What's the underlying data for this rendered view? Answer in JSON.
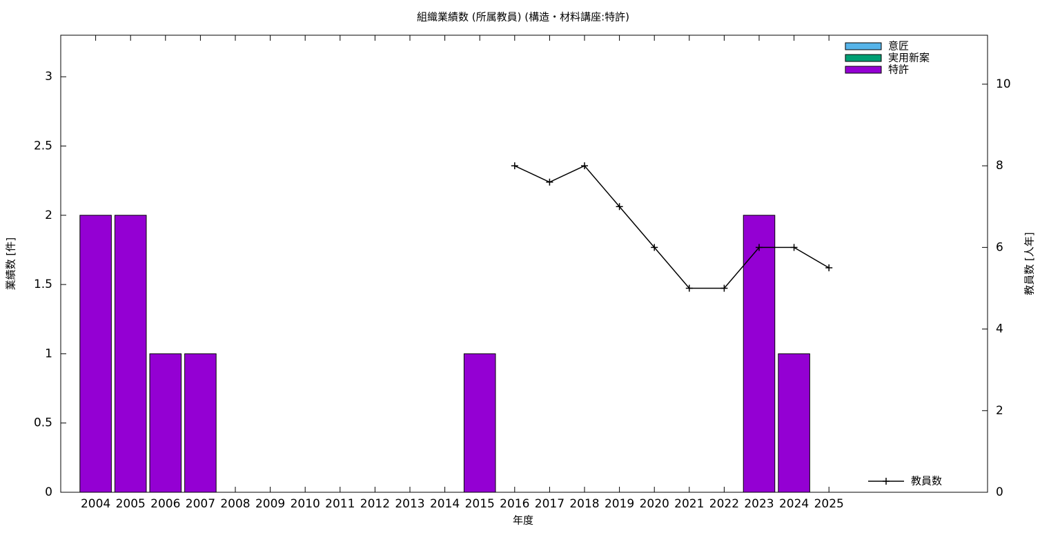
{
  "chart_data": {
    "type": "bar",
    "stacked": true,
    "title": "組織業績数 (所属教員) (構造・材料講座:特許)",
    "x_label": "年度",
    "y_label": "業績数 [件]",
    "y2_label": "教員数 [人年]",
    "categories": [
      "2004",
      "2005",
      "2006",
      "2007",
      "2008",
      "2009",
      "2010",
      "2011",
      "2012",
      "2013",
      "2014",
      "2015",
      "2016",
      "2017",
      "2018",
      "2019",
      "2020",
      "2021",
      "2022",
      "2023",
      "2024",
      "2025"
    ],
    "series": [
      {
        "name": "意匠",
        "color": "#56b4e9",
        "values": [
          0,
          0,
          0,
          0,
          0,
          0,
          0,
          0,
          0,
          0,
          0,
          0,
          0,
          0,
          0,
          0,
          0,
          0,
          0,
          0,
          0,
          0
        ]
      },
      {
        "name": "実用新案",
        "color": "#009e73",
        "values": [
          0,
          0,
          0,
          0,
          0,
          0,
          0,
          0,
          0,
          0,
          0,
          0,
          0,
          0,
          0,
          0,
          0,
          0,
          0,
          0,
          0,
          0
        ]
      },
      {
        "name": "特許",
        "color": "#9400d3",
        "values": [
          2,
          2,
          1,
          1,
          0,
          0,
          0,
          0,
          0,
          0,
          0,
          1,
          0,
          0,
          0,
          0,
          0,
          0,
          0,
          2,
          1,
          0
        ]
      },
      {
        "name": "教員数",
        "type": "line",
        "axis": "y2",
        "color": "#000000",
        "values": [
          null,
          null,
          null,
          null,
          null,
          null,
          null,
          null,
          null,
          null,
          null,
          null,
          8,
          7.6,
          8,
          7,
          6,
          5,
          5,
          6,
          6,
          5.5
        ]
      }
    ],
    "ylim": [
      0,
      3.3
    ],
    "yticks": [
      0,
      0.5,
      1,
      1.5,
      2,
      2.5,
      3
    ],
    "y2lim": [
      0,
      11.2
    ],
    "y2ticks": [
      0,
      2,
      4,
      6,
      8,
      10
    ],
    "legend": "top-right"
  }
}
